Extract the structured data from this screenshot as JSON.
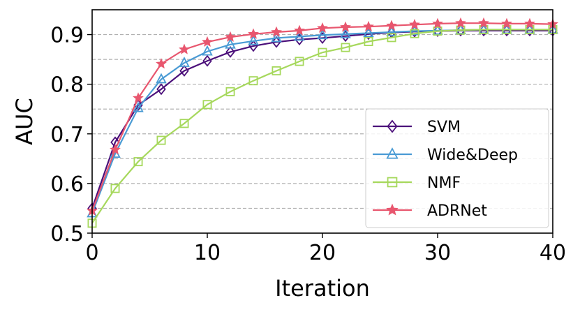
{
  "chart_data": {
    "type": "line",
    "title": "",
    "xlabel": "Iteration",
    "ylabel": "AUC",
    "xlim": [
      0,
      40
    ],
    "ylim": [
      0.5,
      0.95
    ],
    "xticks": [
      0,
      10,
      20,
      30,
      40
    ],
    "xtick_labels": [
      "0",
      "10",
      "20",
      "30",
      "40"
    ],
    "yticks": [
      0.5,
      0.6,
      0.7,
      0.8,
      0.9
    ],
    "ytick_labels": [
      "0.5",
      "0.6",
      "0.7",
      "0.8",
      "0.9"
    ],
    "grid": "horizontal dashed at 0.05 steps",
    "legend_position": "lower-right",
    "x": [
      0,
      2,
      4,
      6,
      8,
      10,
      12,
      14,
      16,
      18,
      20,
      22,
      24,
      26,
      28,
      30,
      32,
      34,
      36,
      38,
      40
    ],
    "series": [
      {
        "name": "SVM",
        "color": "#4b0f7a",
        "marker": "diamond",
        "values": [
          0.55,
          0.683,
          0.758,
          0.79,
          0.827,
          0.847,
          0.865,
          0.877,
          0.885,
          0.89,
          0.893,
          0.897,
          0.901,
          0.904,
          0.906,
          0.907,
          0.908,
          0.908,
          0.908,
          0.908,
          0.908
        ]
      },
      {
        "name": "Wide&Deep",
        "color": "#4a9bd4",
        "marker": "triangle",
        "values": [
          0.54,
          0.66,
          0.752,
          0.81,
          0.843,
          0.866,
          0.88,
          0.887,
          0.893,
          0.896,
          0.899,
          0.901,
          0.903,
          0.905,
          0.907,
          0.908,
          0.909,
          0.91,
          0.91,
          0.91,
          0.91
        ]
      },
      {
        "name": "NMF",
        "color": "#a6d85c",
        "marker": "square",
        "values": [
          0.52,
          0.59,
          0.644,
          0.687,
          0.721,
          0.759,
          0.785,
          0.807,
          0.827,
          0.846,
          0.864,
          0.874,
          0.886,
          0.894,
          0.902,
          0.907,
          0.909,
          0.91,
          0.91,
          0.91,
          0.91
        ]
      },
      {
        "name": "ADRNet",
        "color": "#e8566e",
        "marker": "star",
        "values": [
          0.545,
          0.668,
          0.772,
          0.841,
          0.87,
          0.885,
          0.895,
          0.901,
          0.905,
          0.908,
          0.913,
          0.915,
          0.916,
          0.918,
          0.92,
          0.922,
          0.923,
          0.923,
          0.922,
          0.922,
          0.921
        ]
      }
    ]
  }
}
